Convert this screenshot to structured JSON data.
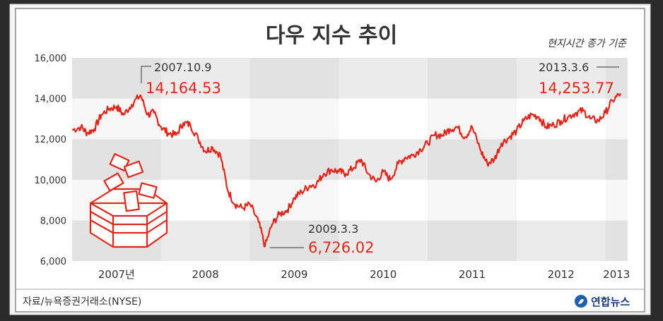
{
  "title": "다우 지수 추이",
  "note": "현지시간 종가 기준",
  "source": "자료/뉴욕증권거래소(NYSE)",
  "logo_text": "연합뉴스",
  "colors": {
    "line": "#e0261b",
    "accent": "#e0261b",
    "band_light": "#ffffff",
    "band_dark": "#ebebeb",
    "axis_text": "#333333"
  },
  "chart_data": {
    "type": "line",
    "title": "다우 지수 추이",
    "x_tick_labels": [
      "2007년",
      "2008",
      "2009",
      "2010",
      "2011",
      "2012",
      "2013"
    ],
    "y_tick_labels": [
      "6,000",
      "8,000",
      "10,000",
      "12,000",
      "14,000",
      "16,000"
    ],
    "ylim": [
      6000,
      16000
    ],
    "xlim": [
      2007.0,
      2013.25
    ],
    "grid": "alternating horizontal bands",
    "series": [
      {
        "x": [
          2007.0,
          2007.1,
          2007.17,
          2007.25,
          2007.33,
          2007.42,
          2007.5,
          2007.58,
          2007.67,
          2007.77,
          2007.85,
          2007.92,
          2008.0,
          2008.08,
          2008.17,
          2008.25,
          2008.33,
          2008.42,
          2008.5,
          2008.58,
          2008.67,
          2008.75,
          2008.83,
          2008.92,
          2009.0,
          2009.1,
          2009.17,
          2009.25,
          2009.33,
          2009.42,
          2009.5,
          2009.58,
          2009.67,
          2009.75,
          2009.83,
          2009.92,
          2010.0,
          2010.08,
          2010.17,
          2010.25,
          2010.33,
          2010.42,
          2010.5,
          2010.58,
          2010.67,
          2010.75,
          2010.83,
          2010.92,
          2011.0,
          2011.08,
          2011.17,
          2011.25,
          2011.33,
          2011.42,
          2011.5,
          2011.6,
          2011.67,
          2011.75,
          2011.83,
          2011.92,
          2012.0,
          2012.08,
          2012.17,
          2012.25,
          2012.33,
          2012.42,
          2012.5,
          2012.58,
          2012.67,
          2012.75,
          2012.83,
          2012.92,
          2013.0,
          2013.08,
          2013.17
        ],
        "y": [
          12450,
          12600,
          12300,
          12500,
          13200,
          13500,
          13600,
          13200,
          13700,
          14164.53,
          13200,
          13300,
          12600,
          12300,
          12200,
          12800,
          12700,
          12000,
          11400,
          11600,
          11200,
          9500,
          8800,
          8600,
          8800,
          7900,
          6726.02,
          7800,
          8300,
          8500,
          9100,
          9400,
          9700,
          9800,
          10300,
          10500,
          10400,
          10300,
          10600,
          11000,
          10300,
          9900,
          10400,
          10000,
          10800,
          11100,
          11200,
          11500,
          11800,
          12200,
          12200,
          12500,
          12600,
          12100,
          12600,
          11400,
          10800,
          11000,
          11800,
          12100,
          12400,
          12900,
          13200,
          13100,
          12600,
          12700,
          12900,
          13100,
          13300,
          13400,
          13000,
          12900,
          13300,
          13900,
          14253.77
        ]
      }
    ],
    "annotations": [
      {
        "date": "2007.10.9",
        "value": "14,164.53"
      },
      {
        "date": "2009.3.3",
        "value": "6,726.02"
      },
      {
        "date": "2013.3.6",
        "value": "14,253.77"
      }
    ]
  }
}
